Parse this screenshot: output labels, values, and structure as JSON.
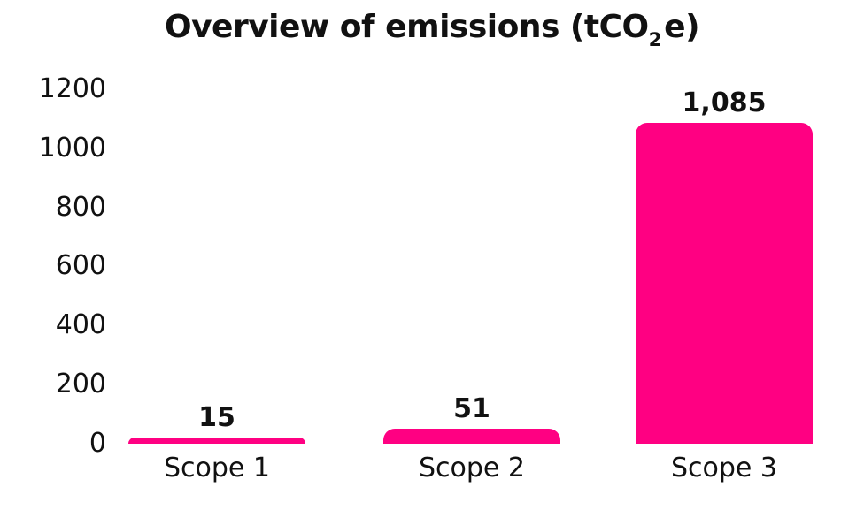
{
  "title": {
    "prefix": "Overview of emissions (tCO",
    "subscript": "2",
    "suffix": "e)"
  },
  "chart_data": {
    "type": "bar",
    "title": "Overview of emissions (tCO₂e)",
    "categories": [
      "Scope 1",
      "Scope 2",
      "Scope 3"
    ],
    "values": [
      15,
      51,
      1085
    ],
    "value_labels": [
      "15",
      "51",
      "1,085"
    ],
    "xlabel": "",
    "ylabel": "",
    "ylim": [
      0,
      1200
    ],
    "y_ticks": [
      0,
      200,
      400,
      600,
      800,
      1000,
      1200
    ],
    "y_tick_labels_top_to_bottom": [
      "1200",
      "1000",
      "800",
      "600",
      "400",
      "200",
      "0"
    ],
    "grid": false,
    "legend_position": "none",
    "bar_color": "#ff0082",
    "text_color": "#111111",
    "background_color": "#ffffff"
  }
}
